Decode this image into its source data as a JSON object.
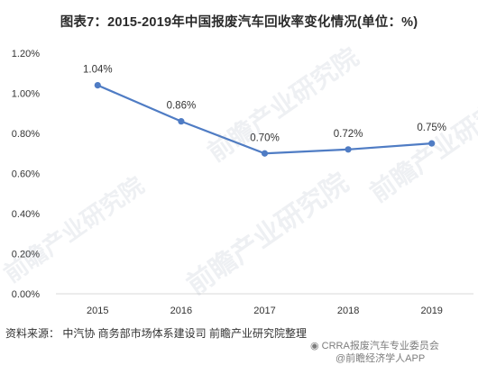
{
  "title": "图表7：2015-2019年中国报废汽车回收率变化情况(单位：%)",
  "source": "资料来源：  中汽协 商务部市场体系建设司 前瞻产业研究院整理",
  "watermarks": {
    "brand": "前瞻产业研究院",
    "wechat": "CRRA报废汽车专业委员会",
    "website": "@前瞻经济学人APP"
  },
  "chart_data": {
    "type": "line",
    "x": [
      "2015",
      "2016",
      "2017",
      "2018",
      "2019"
    ],
    "series": [
      {
        "values": [
          1.04,
          0.86,
          0.7,
          0.72,
          0.75
        ],
        "labels": [
          "1.04%",
          "0.86%",
          "0.70%",
          "0.72%",
          "0.75%"
        ]
      }
    ],
    "yticks": [
      "0.00%",
      "0.20%",
      "0.40%",
      "0.60%",
      "0.80%",
      "1.00%",
      "1.20%"
    ],
    "ylim": [
      0,
      1.2
    ],
    "grid": false,
    "legend": "none",
    "colors": {
      "line": "#4f7cc4",
      "axis": "#d9d9d9",
      "text": "#333333"
    }
  }
}
